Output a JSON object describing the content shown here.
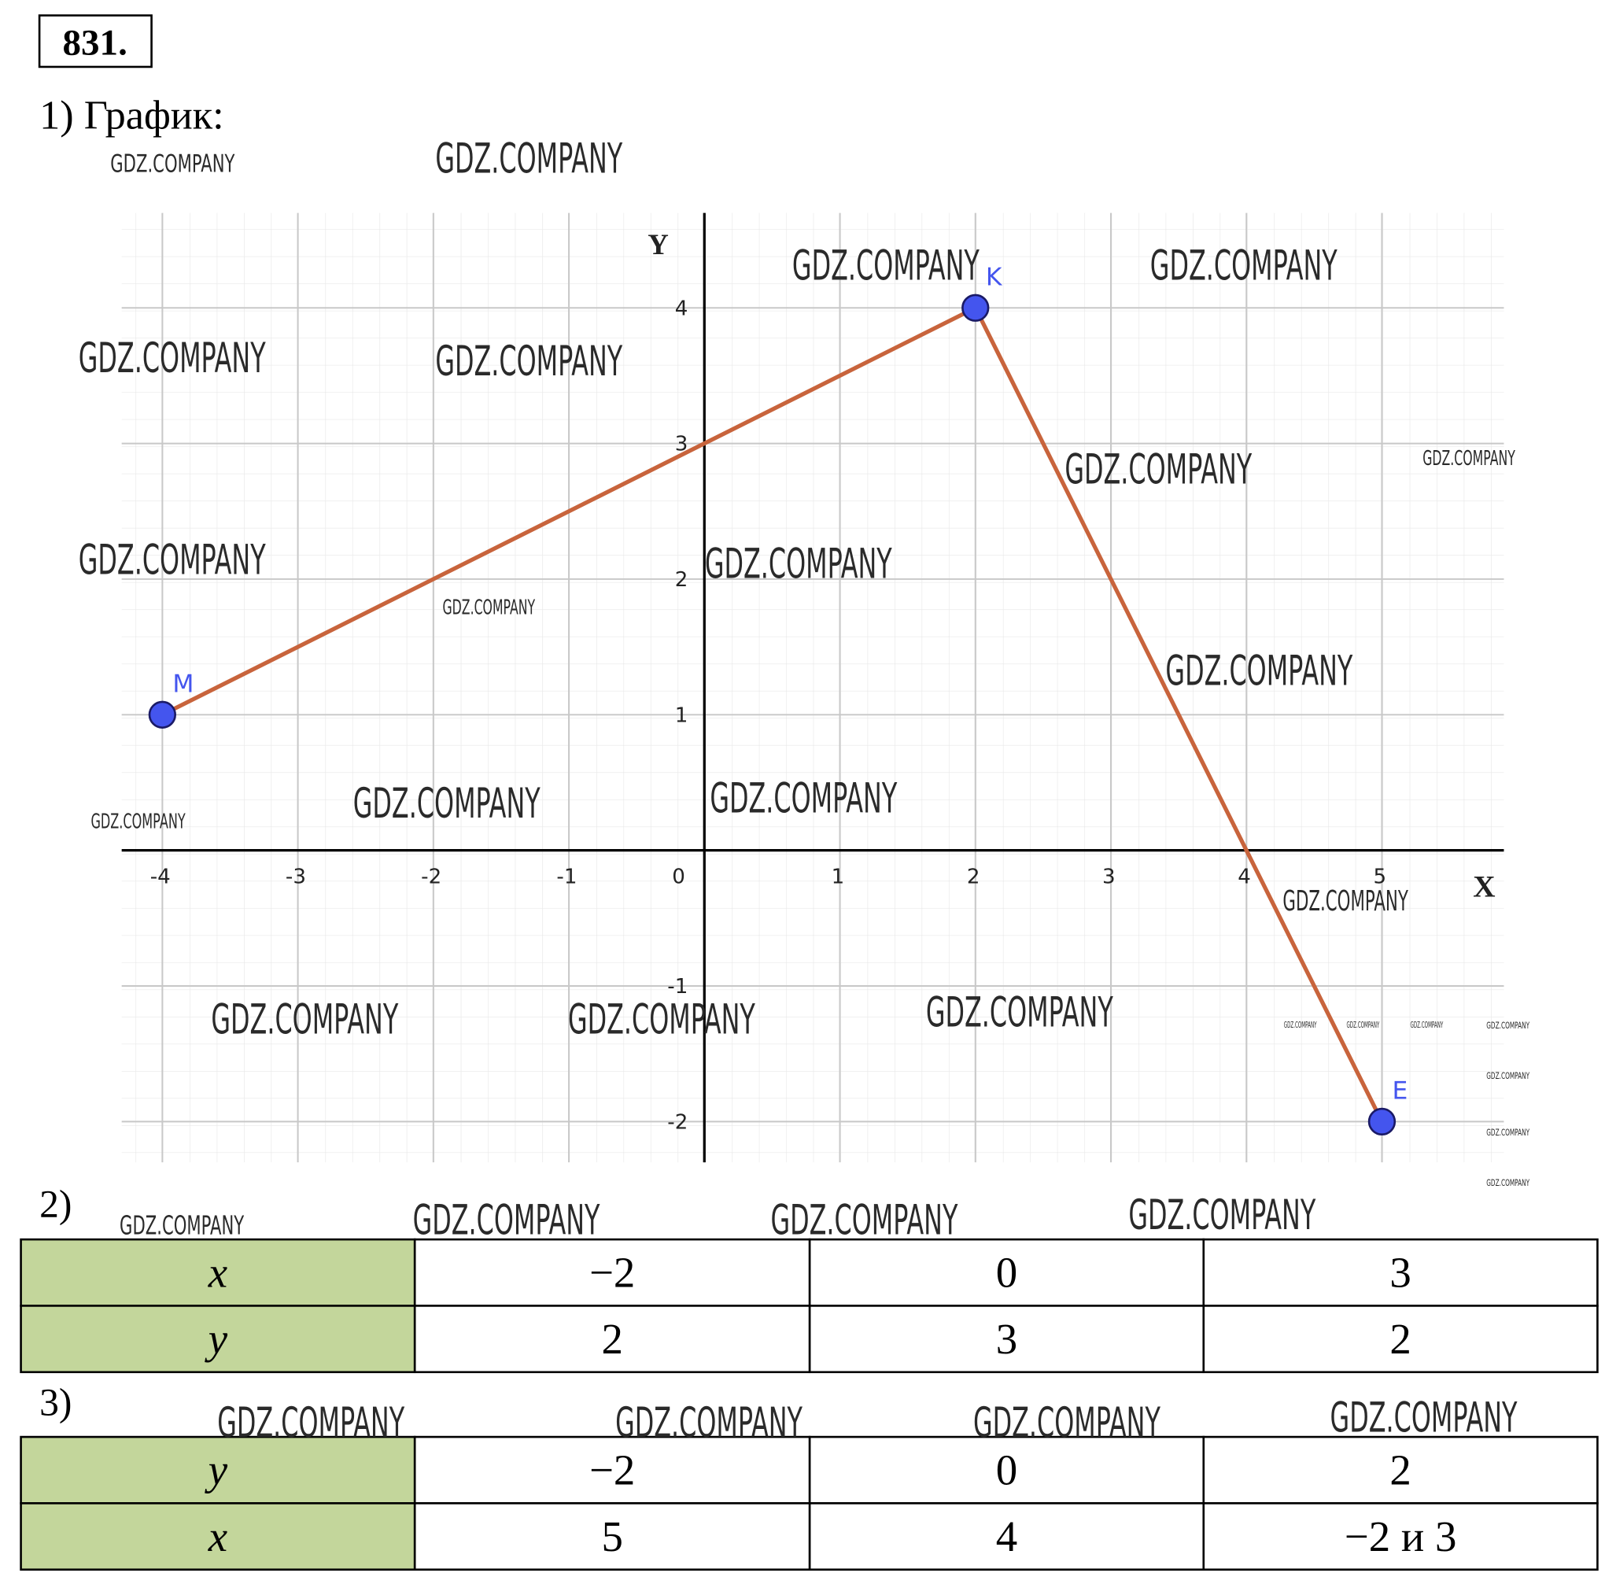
{
  "header": {
    "number": "831.",
    "part1": "1) График:"
  },
  "chart_data": {
    "type": "line",
    "x": [
      -4,
      2,
      5
    ],
    "values": [
      1,
      4,
      -2
    ],
    "point_labels": [
      "M",
      "K",
      "E"
    ],
    "color": "#c8643c",
    "marker_color": "#4455ee",
    "x_label": "X",
    "y_label": "Y",
    "xlim": [
      -4.3,
      5.9
    ],
    "ylim": [
      -2.3,
      4.7
    ],
    "xticks": [
      -4,
      -3,
      -2,
      -1,
      0,
      1,
      2,
      3,
      4,
      5
    ],
    "yticks": [
      -2,
      -1,
      1,
      2,
      3,
      4
    ],
    "grid": true
  },
  "tables": [
    {
      "label": "2)",
      "rows": [
        [
          "x",
          "−2",
          "0",
          "3"
        ],
        [
          "y",
          "2",
          "3",
          "2"
        ]
      ]
    },
    {
      "label": "3)",
      "rows": [
        [
          "y",
          "−2",
          "0",
          "2"
        ],
        [
          "x",
          "5",
          "4",
          "−2 и 3"
        ]
      ]
    }
  ],
  "watermarks": [
    "GDZ.COMPANY",
    "GDZ.COMPANY",
    "GDZ.COMPANY",
    "GDZ.COMPANY",
    "GDZ.COMPANY",
    "GDZ.COMPANY",
    "GDZ.COMPANY",
    "GDZ.COMPANY",
    "GDZ.COMPANY",
    "GDZ.COMPANY",
    "GDZ.COMPANY",
    "GDZ.COMPANY",
    "GDZ.COMPANY",
    "GDZ.COMPANY",
    "GDZ.COMPANY",
    "GDZ.COMPANY",
    "GDZ.COMPANY",
    "GDZ.COMPANY",
    "GDZ.COMPANY",
    "GDZ.COMPANY",
    "GDZ.COMPANY",
    "GDZ.COMPANY",
    "GDZ.COMPANY",
    "GDZ.COMPANY",
    "GDZ.COMPANY",
    "GDZ.COMPANY",
    "GDZ.COMPANY",
    "GDZ.COMPANY",
    "GDZ.COMPANY",
    "GDZ.COMPANY",
    "GDZ.COMPANY",
    "GDZ.COMPANY",
    "GDZ.COMPANY",
    "GDZ.COMPANY"
  ]
}
